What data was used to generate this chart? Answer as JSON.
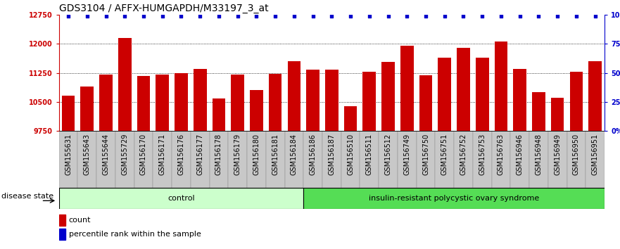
{
  "title": "GDS3104 / AFFX-HUMGAPDH/M33197_3_at",
  "samples": [
    "GSM155631",
    "GSM155643",
    "GSM155644",
    "GSM155729",
    "GSM156170",
    "GSM156171",
    "GSM156176",
    "GSM156177",
    "GSM156178",
    "GSM156179",
    "GSM156180",
    "GSM156181",
    "GSM156184",
    "GSM156186",
    "GSM156187",
    "GSM156510",
    "GSM156511",
    "GSM156512",
    "GSM156749",
    "GSM156750",
    "GSM156751",
    "GSM156752",
    "GSM156753",
    "GSM156763",
    "GSM156946",
    "GSM156948",
    "GSM156949",
    "GSM156950",
    "GSM156951"
  ],
  "values": [
    10650,
    10900,
    11200,
    12150,
    11170,
    11200,
    11250,
    11350,
    10580,
    11200,
    10800,
    11220,
    11550,
    11330,
    11330,
    10380,
    11280,
    11530,
    11960,
    11180,
    11650,
    11900,
    11650,
    12060,
    11350,
    10750,
    10600,
    11270,
    11550
  ],
  "control_count": 13,
  "disease_label": "insulin-resistant polycystic ovary syndrome",
  "control_label": "control",
  "disease_state_label": "disease state",
  "bar_color": "#cc0000",
  "dot_color": "#0000cc",
  "ymin": 9750,
  "ymax": 12750,
  "yticks": [
    9750,
    10500,
    11250,
    12000,
    12750
  ],
  "right_yticks": [
    0,
    25,
    50,
    75,
    100
  ],
  "right_yticklabels": [
    "0%",
    "25%",
    "50%",
    "75%",
    "100%"
  ],
  "control_bg": "#ccffcc",
  "disease_bg": "#55dd55",
  "legend_count_label": "count",
  "legend_pct_label": "percentile rank within the sample",
  "title_fontsize": 10,
  "tick_fontsize": 7,
  "label_fontsize": 8,
  "xtick_fontsize": 7
}
